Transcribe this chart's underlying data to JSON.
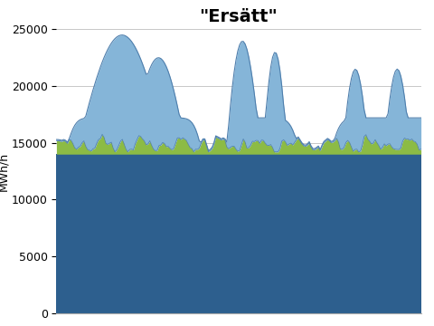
{
  "title": "\"Ersätt\"",
  "ylabel": "MWh/h",
  "ylim": [
    0,
    25000
  ],
  "yticks": [
    0,
    5000,
    10000,
    15000,
    20000,
    25000
  ],
  "dark_blue_base": 14000,
  "color_dark_blue": "#2D5F8E",
  "color_green": "#8CBB45",
  "color_light_blue": "#85B5D8",
  "color_light_blue_edge": "#4F7FAD",
  "n_points": 200,
  "background_color": "#ffffff",
  "title_fontsize": 14,
  "ylabel_fontsize": 9,
  "ytick_fontsize": 9,
  "grid_color": "#c8c8c8"
}
